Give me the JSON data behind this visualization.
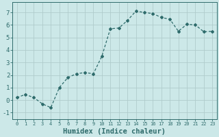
{
  "x": [
    0,
    1,
    2,
    3,
    4,
    5,
    6,
    7,
    8,
    9,
    10,
    11,
    12,
    13,
    14,
    15,
    16,
    17,
    18,
    19,
    20,
    21,
    22,
    23
  ],
  "y": [
    0.2,
    0.45,
    0.2,
    -0.3,
    -0.6,
    1.0,
    1.8,
    2.1,
    2.2,
    2.1,
    3.5,
    5.7,
    5.75,
    6.35,
    7.1,
    7.0,
    6.9,
    6.6,
    6.45,
    5.5,
    6.05,
    6.0,
    5.45,
    5.5
  ],
  "line_color": "#2e6b6b",
  "marker": "D",
  "marker_size": 2.0,
  "bg_color": "#cce8e8",
  "grid_color": "#b0cccc",
  "axis_color": "#2e6b6b",
  "xlabel": "Humidex (Indice chaleur)",
  "xlabel_fontsize": 7.5,
  "xlabel_fontweight": "bold",
  "ylim": [
    -1.5,
    7.8
  ],
  "yticks": [
    -1,
    0,
    1,
    2,
    3,
    4,
    5,
    6,
    7
  ],
  "xticks": [
    0,
    1,
    2,
    3,
    4,
    5,
    6,
    7,
    8,
    9,
    10,
    11,
    12,
    13,
    14,
    15,
    16,
    17,
    18,
    19,
    20,
    21,
    22,
    23
  ],
  "xlim": [
    -0.5,
    23.5
  ]
}
